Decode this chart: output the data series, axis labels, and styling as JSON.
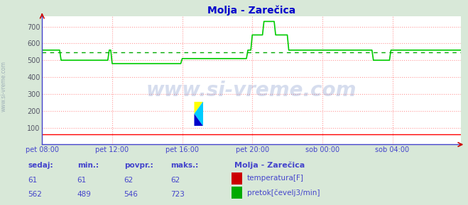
{
  "title": "Molja - Zarečica",
  "title_color": "#0000cc",
  "bg_color": "#d8e8d8",
  "plot_bg_color": "#ffffff",
  "grid_color": "#ff9999",
  "grid_style": ":",
  "yticks": [
    100,
    200,
    300,
    400,
    500,
    600,
    700
  ],
  "ylim": [
    0,
    760
  ],
  "xlim": [
    0,
    287
  ],
  "xtick_labels": [
    "pet 08:00",
    "pet 12:00",
    "pet 16:00",
    "pet 20:00",
    "sob 00:00",
    "sob 04:00"
  ],
  "xtick_positions": [
    0,
    48,
    96,
    144,
    192,
    240
  ],
  "temp_color": "#ff0000",
  "flow_color": "#00cc00",
  "avg_color": "#00aa00",
  "avg_value": 546,
  "temp_value": 61,
  "watermark": "www.si-vreme.com",
  "spine_color": "#4444cc",
  "arrow_color": "#cc0000",
  "footer_labels": [
    "sedaj:",
    "min.:",
    "povpr.:",
    "maks.:"
  ],
  "footer_values_temp": [
    "61",
    "61",
    "62",
    "62"
  ],
  "footer_values_flow": [
    "562",
    "489",
    "546",
    "723"
  ],
  "legend_title": "Molja - Zarečica",
  "legend_items": [
    "temperatura[F]",
    "pretok[čevelj3/min]"
  ],
  "legend_colors": [
    "#cc0000",
    "#00aa00"
  ],
  "sidebar_text": "www.si-vreme.com",
  "flow_data": [
    560,
    560,
    560,
    560,
    560,
    560,
    560,
    560,
    560,
    560,
    560,
    560,
    560,
    500,
    500,
    500,
    500,
    500,
    500,
    500,
    500,
    500,
    500,
    500,
    500,
    500,
    500,
    500,
    500,
    500,
    500,
    500,
    500,
    500,
    500,
    500,
    500,
    500,
    500,
    500,
    500,
    500,
    500,
    500,
    500,
    500,
    560,
    560,
    480,
    480,
    480,
    480,
    480,
    480,
    480,
    480,
    480,
    480,
    480,
    480,
    480,
    480,
    480,
    480,
    480,
    480,
    480,
    480,
    480,
    480,
    480,
    480,
    480,
    480,
    480,
    480,
    480,
    480,
    480,
    480,
    480,
    480,
    480,
    480,
    480,
    480,
    480,
    480,
    480,
    480,
    480,
    480,
    480,
    480,
    480,
    480,
    510,
    510,
    510,
    510,
    510,
    510,
    510,
    510,
    510,
    510,
    510,
    510,
    510,
    510,
    510,
    510,
    510,
    510,
    510,
    510,
    510,
    510,
    510,
    510,
    510,
    510,
    510,
    510,
    510,
    510,
    510,
    510,
    510,
    510,
    510,
    510,
    510,
    510,
    510,
    510,
    510,
    510,
    510,
    510,
    510,
    560,
    560,
    560,
    650,
    650,
    650,
    650,
    650,
    650,
    650,
    650,
    730,
    730,
    730,
    730,
    730,
    730,
    730,
    730,
    650,
    650,
    650,
    650,
    650,
    650,
    650,
    650,
    650,
    560,
    560,
    560,
    560,
    560,
    560,
    560,
    560,
    560,
    560,
    560,
    560,
    560,
    560,
    560,
    560,
    560,
    560,
    560,
    560,
    560,
    560,
    560,
    560,
    560,
    560,
    560,
    560,
    560,
    560,
    560,
    560,
    560,
    560,
    560,
    560,
    560,
    560,
    560,
    560,
    560,
    560,
    560,
    560,
    560,
    560,
    560,
    560,
    560,
    560,
    560,
    560,
    560,
    560,
    560,
    560,
    560,
    560,
    500,
    500,
    500,
    500,
    500,
    500,
    500,
    500,
    500,
    500,
    500,
    500,
    560,
    560,
    560,
    560,
    560,
    560,
    560,
    560,
    560,
    560,
    560,
    560,
    560,
    560,
    560,
    560,
    560,
    560,
    560,
    560,
    560,
    560,
    560,
    560,
    560,
    560,
    560,
    560,
    560,
    560,
    560,
    560,
    560,
    560,
    560,
    560,
    560,
    560,
    560,
    560,
    560,
    560,
    560,
    560,
    560,
    560,
    560,
    560,
    560
  ]
}
